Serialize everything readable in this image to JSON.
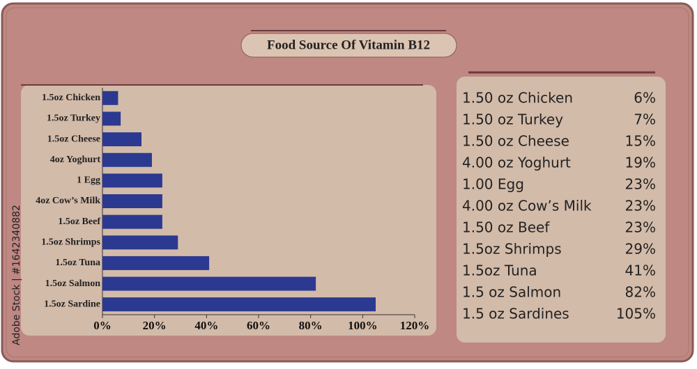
{
  "chart_data": {
    "type": "bar",
    "orientation": "horizontal",
    "title": "Food Source Of Vitamin B12",
    "categories": [
      "1.5oz Chicken",
      "1.5oz Turkey",
      "1.5oz Cheese",
      "4oz Yoghurt",
      "1 Egg",
      "4oz Cow’s Milk",
      "1.5oz Beef",
      "1.5oz Shrimps",
      "1.5oz Tuna",
      "1.5oz Salmon",
      "1.5oz Sardine"
    ],
    "values": [
      6,
      7,
      15,
      19,
      23,
      23,
      23,
      29,
      41,
      82,
      105
    ],
    "color": "#2b3990",
    "xlim": [
      0,
      120
    ],
    "xticks": [
      {
        "value": 0,
        "label": "0%"
      },
      {
        "value": 20,
        "label": "20%"
      },
      {
        "value": 40,
        "label": "40%"
      },
      {
        "value": 60,
        "label": "60%"
      },
      {
        "value": 80,
        "label": "80%"
      },
      {
        "value": 100,
        "label": "100%"
      },
      {
        "value": 120,
        "label": "120%"
      }
    ],
    "grid": false
  },
  "table": {
    "rows": [
      [
        "1.50 oz Chicken",
        "6%"
      ],
      [
        "1.50 oz Turkey",
        "7%"
      ],
      [
        "1.50 oz Cheese",
        "15%"
      ],
      [
        "4.00 oz Yoghurt",
        "19%"
      ],
      [
        "1.00 Egg",
        "23%"
      ],
      [
        "4.00 oz Cow’s Milk",
        "23%"
      ],
      [
        "1.50 oz Beef",
        "23%"
      ],
      [
        "1.5oz Shrimps",
        "29%"
      ],
      [
        "1.5oz Tuna",
        "41%"
      ],
      [
        "1.5 oz Salmon",
        "82%"
      ],
      [
        "1.5 oz Sardines",
        "105%"
      ]
    ]
  },
  "side_text": "Adobe Stock | #1642340882"
}
